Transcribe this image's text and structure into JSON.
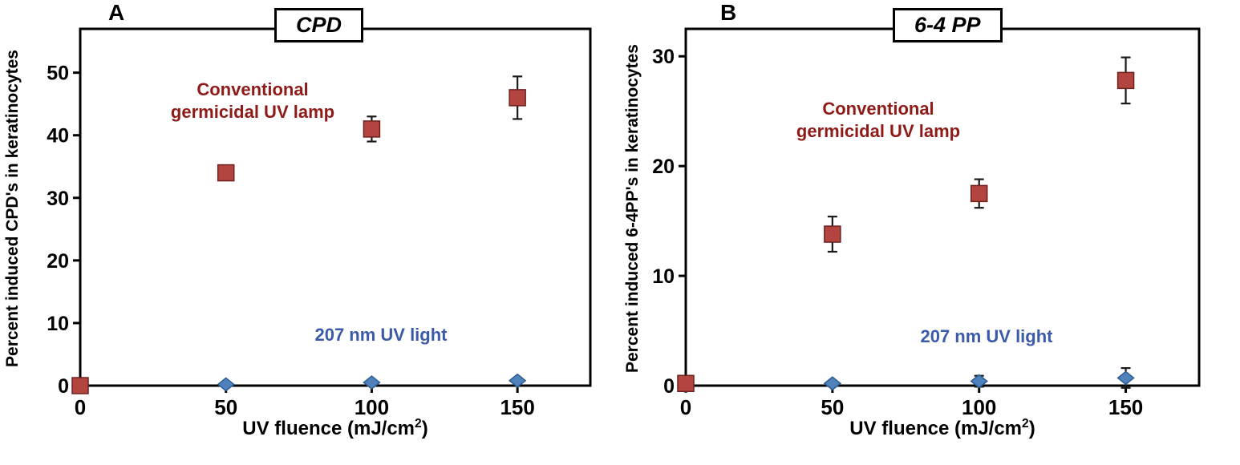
{
  "figure": {
    "background": "#ffffff"
  },
  "colors": {
    "axis": "#000000",
    "error_bar": "#1a1a1a",
    "red_marker": "#b3443f",
    "red_marker_edge": "#6e2220",
    "blue_marker": "#4f81bd",
    "blue_marker_edge": "#2f5c8f",
    "red_label_text": "#8e1b18",
    "blue_label_text": "#3b5ba9"
  },
  "chart_data": [
    {
      "type": "scatter",
      "panel_label": "A",
      "title": "CPD",
      "xlabel": "UV fluence (mJ/cm²)",
      "xlabel_parts": {
        "base": "UV fluence (mJ/cm",
        "sup": "2",
        "end": ")"
      },
      "ylabel": "Percent induced CPD's in keratinocytes",
      "xlim": [
        0,
        175
      ],
      "ylim": [
        0,
        57
      ],
      "xticks": [
        0,
        50,
        100,
        150
      ],
      "yticks": [
        0,
        10,
        20,
        30,
        40,
        50
      ],
      "grid": false,
      "legend_position": "in-plot text labels",
      "series": [
        {
          "name": "Conventional germicidal UV lamp",
          "marker": "square",
          "color": "#b3443f",
          "edge": "#6e2220",
          "points": [
            {
              "x": 0,
              "y": 0,
              "err": 0
            },
            {
              "x": 50,
              "y": 34,
              "err": 0
            },
            {
              "x": 100,
              "y": 41,
              "err": 2
            },
            {
              "x": 150,
              "y": 46,
              "err": 3.4
            }
          ]
        },
        {
          "name": "207 nm UV light",
          "marker": "diamond",
          "color": "#4f81bd",
          "edge": "#2f5c8f",
          "points": [
            {
              "x": 0,
              "y": 0,
              "err": 0
            },
            {
              "x": 50,
              "y": 0.2,
              "err": 0
            },
            {
              "x": 100,
              "y": 0.5,
              "err": 0
            },
            {
              "x": 150,
              "y": 0.8,
              "err": 0
            }
          ]
        }
      ],
      "annotations": [
        {
          "text": "Conventional\ngermicidal UV lamp",
          "color": "#8e1b18"
        },
        {
          "text": "207 nm UV light",
          "color": "#3b5ba9"
        }
      ]
    },
    {
      "type": "scatter",
      "panel_label": "B",
      "title": "6-4 PP",
      "xlabel": "UV fluence (mJ/cm²)",
      "xlabel_parts": {
        "base": "UV fluence (mJ/cm",
        "sup": "2",
        "end": ")"
      },
      "ylabel": "Percent induced 6-4PP's in keratinocytes",
      "xlim": [
        0,
        175
      ],
      "ylim": [
        0,
        32.5
      ],
      "xticks": [
        0,
        50,
        100,
        150
      ],
      "yticks": [
        0,
        10,
        20,
        30
      ],
      "grid": false,
      "legend_position": "in-plot text labels",
      "series": [
        {
          "name": "Conventional germicidal UV lamp",
          "marker": "square",
          "color": "#b3443f",
          "edge": "#6e2220",
          "points": [
            {
              "x": 0,
              "y": 0.2,
              "err": 0
            },
            {
              "x": 50,
              "y": 13.8,
              "err": 1.6
            },
            {
              "x": 100,
              "y": 17.5,
              "err": 1.3
            },
            {
              "x": 150,
              "y": 27.8,
              "err": 2.1
            }
          ]
        },
        {
          "name": "207 nm UV light",
          "marker": "diamond",
          "color": "#4f81bd",
          "edge": "#2f5c8f",
          "points": [
            {
              "x": 0,
              "y": 0,
              "err": 0
            },
            {
              "x": 50,
              "y": 0.2,
              "err": 0
            },
            {
              "x": 100,
              "y": 0.4,
              "err": 0.5
            },
            {
              "x": 150,
              "y": 0.7,
              "err": 0.9
            }
          ]
        }
      ],
      "annotations": [
        {
          "text": "Conventional\ngermicidal UV lamp",
          "color": "#8e1b18"
        },
        {
          "text": "207 nm UV light",
          "color": "#3b5ba9"
        }
      ]
    }
  ]
}
